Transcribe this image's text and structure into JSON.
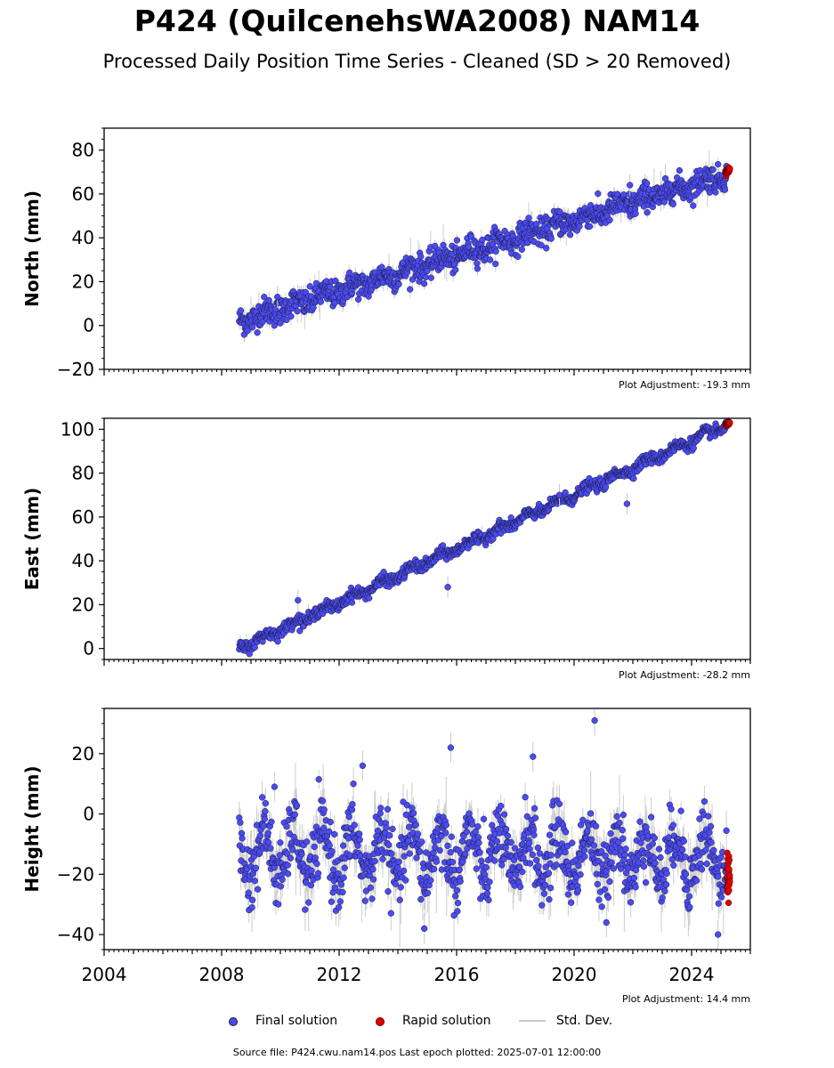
{
  "title": "P424 (QuilcenehsWA2008) NAM14",
  "subtitle": "Processed Daily Position Time Series - Cleaned (SD > 20 Removed)",
  "colors": {
    "final": "#4b4bf0",
    "rapid": "#e00000",
    "stddev": "#c8c8c8"
  },
  "legend": {
    "final": "Final solution",
    "rapid": "Rapid solution",
    "stddev": "Std. Dev."
  },
  "source": "Source file: P424.cwu.nam14.pos  Last epoch plotted: 2025-07-01 12:00:00",
  "chart_data": [
    {
      "type": "scatter",
      "ylabel": "North (mm)",
      "adjustment": "Plot Adjustment: -19.3 mm",
      "xlim": [
        2004,
        2026
      ],
      "ylim": [
        -20,
        90
      ],
      "yticks": [
        -20,
        0,
        20,
        40,
        60,
        80
      ],
      "yminor": 5,
      "show_xlabels": false,
      "xticks": [
        2004,
        2008,
        2012,
        2016,
        2020,
        2024
      ],
      "series": [
        {
          "name": "Final solution",
          "trend": {
            "x": [
              2008.6,
              2025.2
            ],
            "y": [
              2,
              69
            ]
          },
          "noise": 3.0,
          "annual_amp": 1.5
        },
        {
          "name": "Rapid solution",
          "trend": {
            "x": [
              2025.15,
              2025.3
            ],
            "y": [
              70,
              71
            ]
          },
          "noise": 0.6
        }
      ],
      "outliers": [
        {
          "x": 2021.9,
          "y": 64
        },
        {
          "x": 2009.9,
          "y": 13
        }
      ]
    },
    {
      "type": "scatter",
      "ylabel": "East (mm)",
      "adjustment": "Plot Adjustment: -28.2 mm",
      "xlim": [
        2004,
        2026
      ],
      "ylim": [
        -5,
        105
      ],
      "yticks": [
        0,
        20,
        40,
        60,
        80,
        100
      ],
      "yminor": 5,
      "show_xlabels": false,
      "xticks": [
        2004,
        2008,
        2012,
        2016,
        2020,
        2024
      ],
      "series": [
        {
          "name": "Final solution",
          "trend": {
            "x": [
              2008.6,
              2025.2
            ],
            "y": [
              0,
              102
            ]
          },
          "noise": 1.3,
          "annual_amp": 1.2
        },
        {
          "name": "Rapid solution",
          "trend": {
            "x": [
              2025.15,
              2025.3
            ],
            "y": [
              102,
              103
            ]
          },
          "noise": 0.4
        }
      ],
      "outliers": [
        {
          "x": 2010.6,
          "y": 22
        },
        {
          "x": 2015.7,
          "y": 28
        },
        {
          "x": 2021.8,
          "y": 66
        },
        {
          "x": 2019.5,
          "y": 70
        }
      ]
    },
    {
      "type": "scatter",
      "ylabel": "Height (mm)",
      "adjustment": "Plot Adjustment: 14.4 mm",
      "xlim": [
        2004,
        2026
      ],
      "ylim": [
        -45,
        35
      ],
      "yticks": [
        -40,
        -20,
        0,
        20
      ],
      "yminor": 5,
      "show_xlabels": true,
      "xticks": [
        2004,
        2008,
        2012,
        2016,
        2020,
        2024
      ],
      "series": [
        {
          "name": "Final solution",
          "trend": {
            "x": [
              2008.6,
              2025.2
            ],
            "y": [
              -13,
              -14
            ]
          },
          "noise": 5.5,
          "annual_amp": 8
        },
        {
          "name": "Rapid solution",
          "trend": {
            "x": [
              2025.2,
              2025.3
            ],
            "y": [
              -22,
              -22
            ]
          },
          "noise": 3.5
        }
      ],
      "outliers": [
        {
          "x": 2015.8,
          "y": 22
        },
        {
          "x": 2018.6,
          "y": 19
        },
        {
          "x": 2020.7,
          "y": 31
        },
        {
          "x": 2014.9,
          "y": -38
        },
        {
          "x": 2024.9,
          "y": -40
        },
        {
          "x": 2021.1,
          "y": -36
        },
        {
          "x": 2009.8,
          "y": 9
        },
        {
          "x": 2012.8,
          "y": 16
        }
      ]
    }
  ]
}
